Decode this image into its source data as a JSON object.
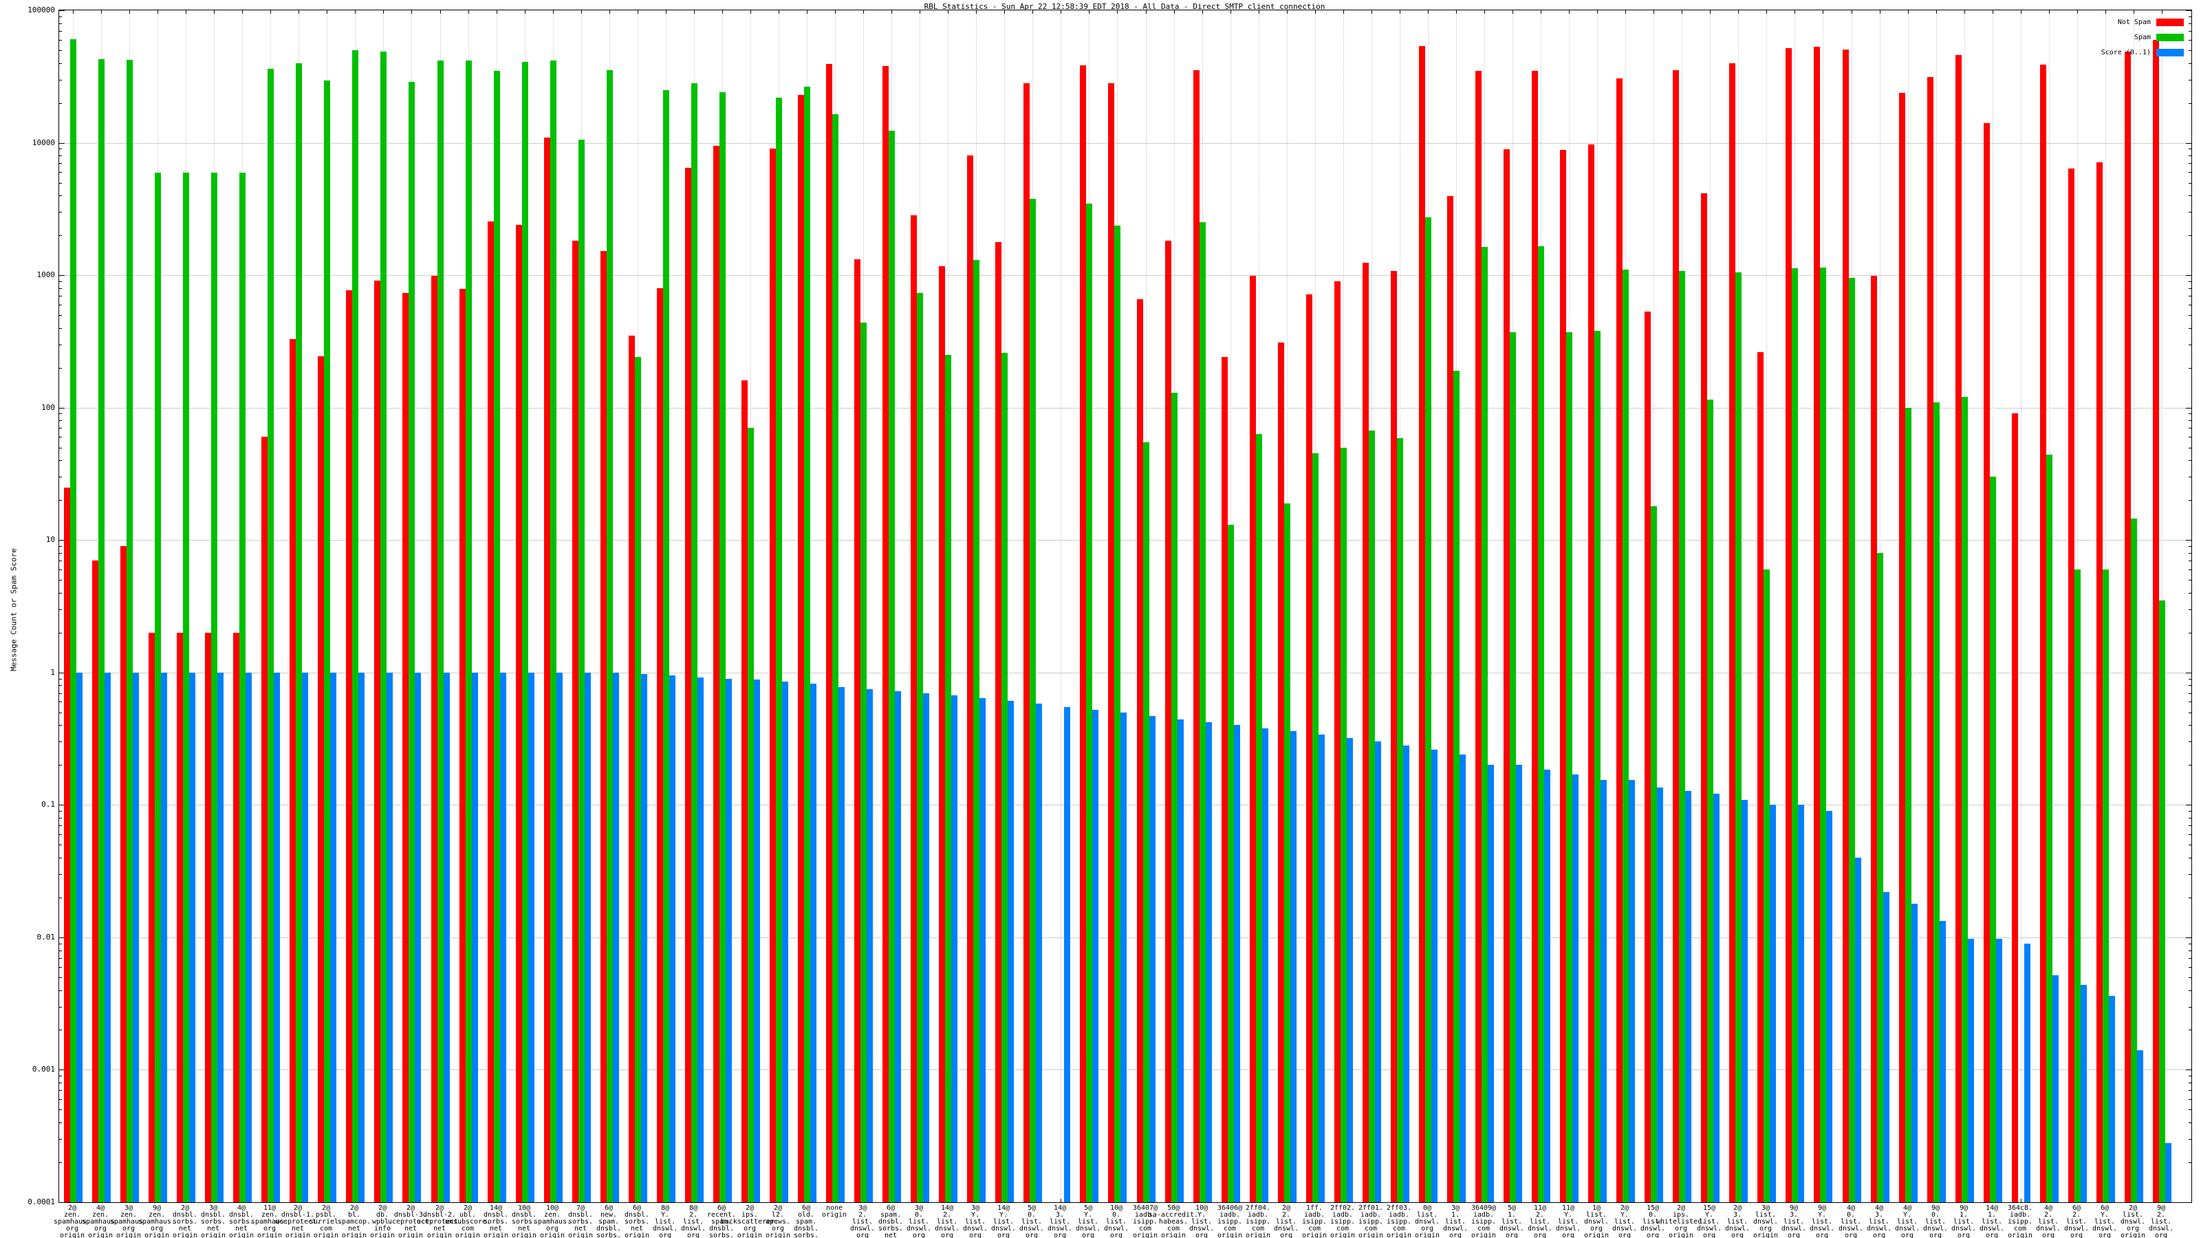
{
  "chart_data": {
    "type": "bar",
    "title": "RBL Statistics - Sun Apr 22 12:58:39 EDT 2018 - All Data - Direct SMTP client connection",
    "ylabel": "Message Count or Spam Score",
    "xlabel": "",
    "y_scale": "log",
    "ylim": [
      0.0001,
      100000
    ],
    "y_ticks": [
      "100000",
      "10000",
      "1000",
      "100",
      "10",
      "1",
      "0.1",
      "0.01",
      "0.001",
      "0.0001"
    ],
    "grid": true,
    "legend_position": "top-right-inside",
    "bar_colors": {
      "not_spam": "#ff0000",
      "spam": "#00c000",
      "score": "#0080ff"
    },
    "categories": [
      "2@\nzen.\nspamhaus.\norg\norigin",
      "4@\nzen.\nspamhaus.\norg\norigin",
      "3@\nzen.\nspamhaus.\norg\norigin",
      "9@\nzen.\nspamhaus.\norg\norigin",
      "2@\ndnsbl.\nsorbs.\nnet\norigin",
      "3@\ndnsbl.\nsorbs.\nnet\norigin",
      "4@\ndnsbl.\nsorbs.\nnet\norigin",
      "11@\nzen.\nspamhaus.\norg\norigin",
      "2@\ndnsbl-1.\nuceprotect.\nnet\norigin",
      "2@\npsbl.\nsurriel.\ncom\norigin",
      "2@\nbl.\nspamcop.\nnet\norigin",
      "2@\ndb.\nwpbl.\ninfo\norigin",
      "2@\ndnsbl-3.\nuceprotect.\nnet\norigin",
      "2@\ndnsbl-2.\nuceprotect.\nnet\norigin",
      "2@\nubl.\nunsubscore.\ncom\norigin",
      "14@\ndnsbl.\nsorbs.\nnet\norigin",
      "10@\ndnsbl.\nsorbs.\nnet\norigin",
      "10@\nzen.\nspamhaus.\norg\norigin",
      "7@\ndnsbl.\nsorbs.\nnet\norigin",
      "6@\nnew.\nspam.\ndnsbl.\nsorbs.\nnet\norigin",
      "6@\ndnsbl.\nsorbs.\nnet\norigin",
      "8@\nY.\nlist.\ndnswl.\norg\norigin",
      "8@\n2.\nlist.\ndnswl.\norg\norigin",
      "6@\nrecent.\nspam.\ndnsbl.\nsorbs.\nnet\norigin",
      "2@\nips.\nbackscatterer.\norg\norigin",
      "2@\nl2.\napews.\norg\norigin",
      "6@\nold.\nspam.\ndnsbl.\nsorbs.\nnet\norigin",
      "none\norigin",
      "3@\n2.\nlist.\ndnswl.\norg\norigin",
      "6@\nspam.\ndnsbl.\nsorbs.\nnet\norigin",
      "3@\n0.\nlist.\ndnswl.\norg\norigin",
      "14@\n2.\nlist.\ndnswl.\norg\norigin",
      "3@\nY.\nlist.\ndnswl.\norg\norigin",
      "14@\nY.\nlist.\ndnswl.\norg\norigin",
      "5@\n0.\nlist.\ndnswl.\norg\norigin",
      "14@\n3.\nlist.\ndnswl.\norg\norigin",
      "5@\nY.\nlist.\ndnswl.\norg\norigin",
      "10@\n0.\nlist.\ndnswl.\norg\norigin",
      "36407@\niadb.\nisipp.\ncom\norigin",
      "50@\nsa-accredit.\nhabeas.\ncom\norigin",
      "10@\nY.\nlist.\ndnswl.\norg\norigin",
      "36406@\niadb.\nisipp.\ncom\norigin",
      "2ff04.\niadb.\nisipp.\ncom\norigin",
      "2@\n2.\nlist.\ndnswl.\norg\norigin",
      "1ff.\niadb.\nisipp.\ncom\norigin",
      "2ff02.\niadb.\nisipp.\ncom\norigin",
      "2ff01.\niadb.\nisipp.\ncom\norigin",
      "2ff03.\niadb.\nisipp.\ncom\norigin",
      "0@\nlist.\ndnswl.\norg\norigin",
      "3@\n1.\nlist.\ndnswl.\norg\norigin",
      "36409@\niadb.\nisipp.\ncom\norigin",
      "5@\n1.\nlist.\ndnswl.\norg\norigin",
      "11@\n2.\nlist.\ndnswl.\norg\norigin",
      "11@\nY.\nlist.\ndnswl.\norg\norigin",
      "1@\nlist.\ndnswl.\norg\norigin",
      "2@\nY.\nlist.\ndnswl.\norg\norigin",
      "15@\n0.\nlist.\ndnswl.\norg\norigin",
      "2@\nips.\nwhitelisted.\norg\norigin",
      "15@\nY.\nlist.\ndnswl.\norg\norigin",
      "2@\n3.\nlist.\ndnswl.\norg\norigin",
      "3@\nlist.\ndnswl.\norg\norigin",
      "9@\n3.\nlist.\ndnswl.\norg\norigin",
      "9@\nY.\nlist.\ndnswl.\norg\norigin",
      "4@\n0.\nlist.\ndnswl.\norg\norigin",
      "4@\n3.\nlist.\ndnswl.\norg\norigin",
      "4@\nY.\nlist.\ndnswl.\norg\norigin",
      "9@\n0.\nlist.\ndnswl.\norg\norigin",
      "9@\n1.\nlist.\ndnswl.\norg\norigin",
      "14@\n1.\nlist.\ndnswl.\norg\norigin",
      "364c8.\niadb.\nisipp.\ncom\norigin",
      "4@\n2.\nlist.\ndnswl.\norg\norigin",
      "6@\n2.\nlist.\ndnswl.\norg\norigin",
      "6@\nY.\nlist.\ndnswl.\norg\norigin",
      "2@\nlist.\ndnswl.\norg\norigin",
      "9@\n2.\nlist.\ndnswl.\norg\norigin"
    ],
    "series": [
      {
        "name": "Not Spam",
        "color": "#ff0000",
        "values": [
          25,
          7,
          9,
          2,
          2,
          2,
          2,
          60,
          330,
          245,
          770,
          910,
          730,
          990,
          790,
          2540,
          2400,
          11000,
          1830,
          1520,
          350,
          800,
          6500,
          9500,
          160,
          9000,
          23000,
          39300,
          1320,
          38000,
          2830,
          1170,
          8000,
          1780,
          28200,
          null,
          38500,
          28000,
          660,
          1830,
          35400,
          240,
          990,
          310,
          720,
          900,
          1240,
          1070,
          54000,
          3960,
          34800,
          8900,
          35000,
          8800,
          9700,
          30600,
          530,
          35500,
          4150,
          40000,
          262,
          51500,
          53000,
          50500,
          990,
          23800,
          31300,
          46000,
          14000,
          90,
          39000,
          6400,
          7100,
          49000,
          60000
        ]
      },
      {
        "name": "Spam",
        "color": "#00c000",
        "values": [
          60500,
          43000,
          42500,
          5950,
          5950,
          5950,
          5950,
          36300,
          40000,
          29500,
          50000,
          48800,
          29000,
          42000,
          42000,
          35000,
          41000,
          42000,
          10500,
          35500,
          240,
          25000,
          28000,
          24000,
          70,
          22000,
          26500,
          16400,
          440,
          12300,
          730,
          250,
          1300,
          260,
          3770,
          null,
          3480,
          2370,
          55,
          130,
          2520,
          13,
          63,
          19,
          45,
          50,
          67,
          59,
          2730,
          190,
          1630,
          370,
          1660,
          370,
          380,
          1100,
          18,
          1070,
          115,
          1050,
          6,
          1130,
          1140,
          960,
          8,
          100,
          110,
          120,
          30,
          null,
          44,
          6,
          6,
          14.5,
          3.5
        ]
      },
      {
        "name": "Score (0..1)",
        "color": "#0080ff",
        "values": [
          1,
          1,
          1,
          1,
          1,
          1,
          1,
          1,
          1,
          1,
          1,
          1,
          1,
          1,
          1,
          1,
          1,
          1,
          1,
          1,
          0.97,
          0.95,
          0.92,
          0.9,
          0.88,
          0.85,
          0.82,
          0.78,
          0.75,
          0.72,
          0.7,
          0.67,
          0.64,
          0.61,
          0.58,
          0.55,
          0.52,
          0.5,
          0.47,
          0.44,
          0.42,
          0.4,
          0.38,
          0.36,
          0.34,
          0.32,
          0.3,
          0.28,
          0.26,
          0.24,
          0.2,
          0.2,
          0.184,
          0.169,
          0.155,
          0.155,
          0.135,
          0.127,
          0.121,
          0.109,
          0.101,
          0.1,
          0.09,
          0.04,
          0.022,
          0.018,
          0.0133,
          0.0097,
          0.0097,
          0.009,
          0.0052,
          0.0044,
          0.0036,
          0.0014,
          0.00028
        ]
      }
    ]
  }
}
